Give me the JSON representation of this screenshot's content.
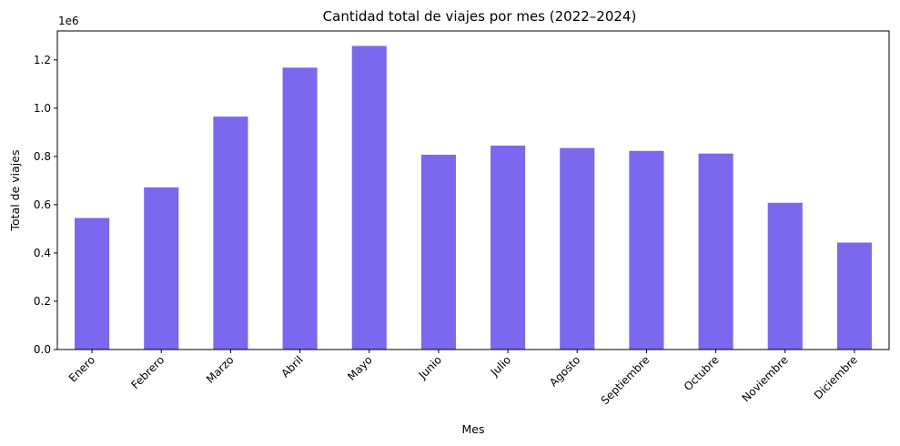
{
  "chart_data": {
    "type": "bar",
    "title": "Cantidad total de viajes por mes (2022–2024)",
    "xlabel": "Mes",
    "ylabel": "Total de viajes",
    "y_offset_label": "1e6",
    "y_scale": 1000000,
    "categories": [
      "Enero",
      "Febrero",
      "Marzo",
      "Abril",
      "Mayo",
      "Junio",
      "Julio",
      "Agosto",
      "Septiembre",
      "Octubre",
      "Noviembre",
      "Diciembre"
    ],
    "values": [
      545000,
      672000,
      965000,
      1168000,
      1258000,
      807000,
      845000,
      835000,
      823000,
      812000,
      608000,
      443000
    ],
    "ylim": [
      0,
      1320000
    ],
    "yticks": [
      0,
      200000,
      400000,
      600000,
      800000,
      1000000,
      1200000
    ],
    "ytick_labels": [
      "0.0",
      "0.2",
      "0.4",
      "0.6",
      "0.8",
      "1.0",
      "1.2"
    ],
    "bar_color": "#7b68ee",
    "grid": false,
    "x_tick_rotation_deg": 45
  }
}
